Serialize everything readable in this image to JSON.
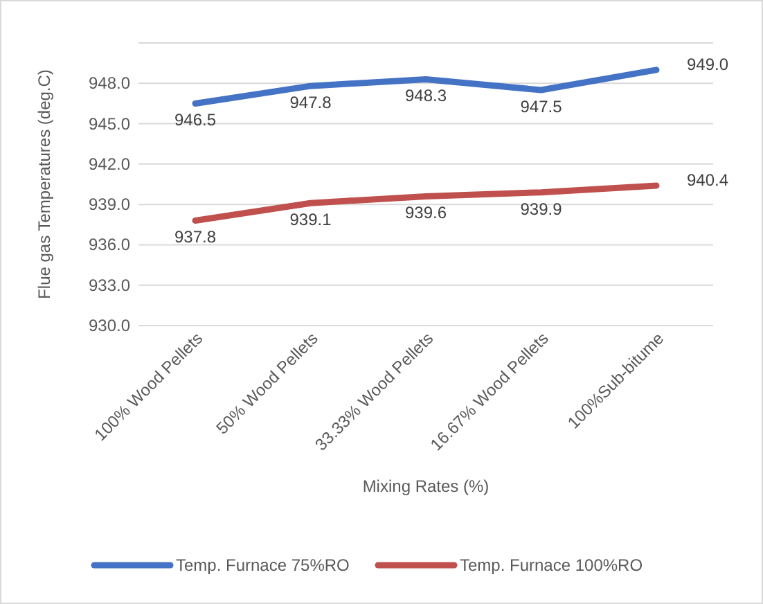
{
  "chart_data": {
    "type": "line",
    "xlabel": "Mixing Rates (%)",
    "ylabel": "Flue gas Temperatures (deg.C)",
    "categories": [
      "100% Wood Pellets",
      "50% Wood Pellets",
      "33.33% Wood Pellets",
      "16.67% Wood Pellets",
      "100%Sub-bitume"
    ],
    "series": [
      {
        "name": "Temp. Furnace 75%RO",
        "color": "#4472c4",
        "values": [
          946.5,
          947.8,
          948.3,
          947.5,
          949.0
        ],
        "value_labels": [
          "946.5",
          "947.8",
          "948.3",
          "947.5",
          "949.0"
        ]
      },
      {
        "name": "Temp. Furnace 100%RO",
        "color": "#c0504d",
        "values": [
          937.8,
          939.1,
          939.6,
          939.9,
          940.4
        ],
        "value_labels": [
          "937.8",
          "939.1",
          "939.6",
          "939.9",
          "940.4"
        ]
      }
    ],
    "ylim": [
      930,
      951
    ],
    "yticks": [
      {
        "value": 930,
        "label": "930.0"
      },
      {
        "value": 933,
        "label": "933.0"
      },
      {
        "value": 936,
        "label": "936.0"
      },
      {
        "value": 939,
        "label": "939.0"
      },
      {
        "value": 942,
        "label": "942.0"
      },
      {
        "value": 945,
        "label": "945.0"
      },
      {
        "value": 948,
        "label": "948.0"
      },
      {
        "value": 951,
        "label": null
      }
    ],
    "grid": "y",
    "legend": "bottom",
    "marker": "none",
    "line_style": "solid"
  }
}
